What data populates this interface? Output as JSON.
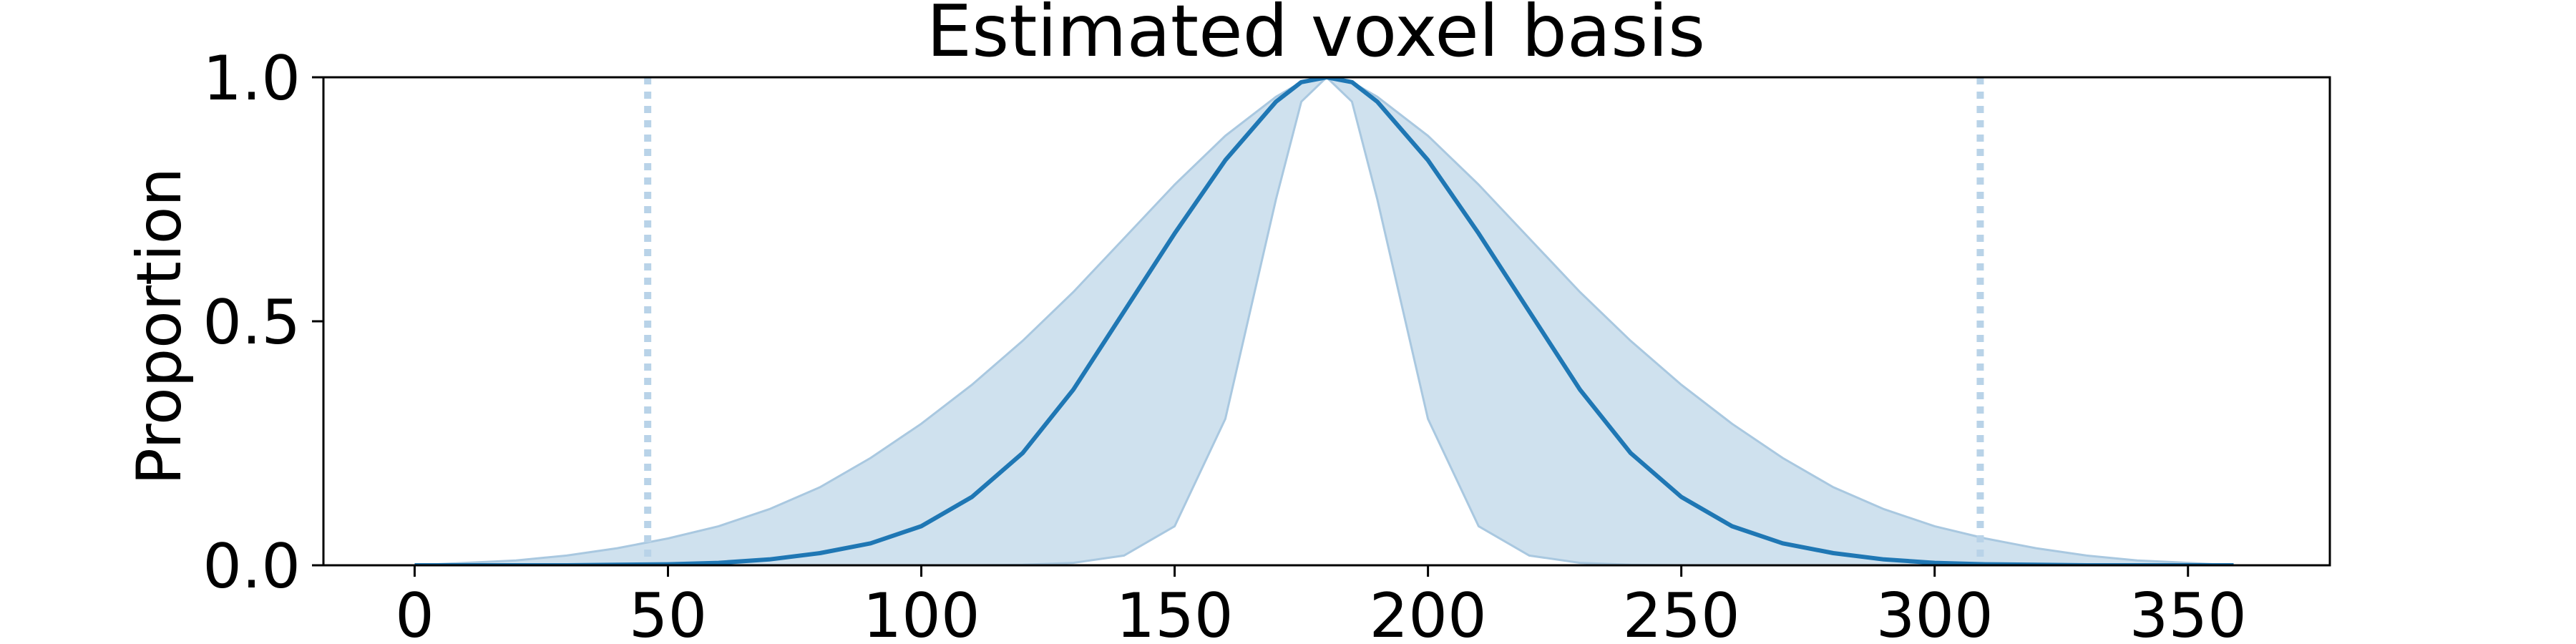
{
  "chart_data": {
    "type": "line",
    "title": "Estimated voxel basis",
    "xlabel": "",
    "ylabel": "Proportion",
    "xlim": [
      -18,
      378
    ],
    "ylim": [
      0.0,
      1.0
    ],
    "xticks": [
      0,
      50,
      100,
      150,
      200,
      250,
      300,
      350
    ],
    "yticks": [
      0.0,
      0.5,
      1.0
    ],
    "xtick_labels": [
      "0",
      "50",
      "100",
      "150",
      "200",
      "250",
      "300",
      "350"
    ],
    "ytick_labels": [
      "0.0",
      "0.5",
      "1.0"
    ],
    "grid": false,
    "legend": "none",
    "colors": {
      "line": "#1f77b4",
      "band": "#cfe1ee",
      "band_edge": "#a9c8e0",
      "vline": "#b9d3e8"
    },
    "x": [
      0,
      10,
      20,
      30,
      40,
      50,
      60,
      70,
      80,
      90,
      100,
      110,
      120,
      130,
      140,
      150,
      160,
      170,
      175,
      180,
      185,
      190,
      200,
      210,
      220,
      230,
      240,
      250,
      260,
      270,
      280,
      290,
      300,
      310,
      320,
      330,
      340,
      350,
      359
    ],
    "series": [
      {
        "values": [
          0.0,
          0.0,
          0.0,
          0.0,
          0.001,
          0.002,
          0.005,
          0.012,
          0.025,
          0.045,
          0.08,
          0.14,
          0.23,
          0.36,
          0.52,
          0.68,
          0.83,
          0.95,
          0.99,
          1.0,
          0.99,
          0.95,
          0.83,
          0.68,
          0.52,
          0.36,
          0.23,
          0.14,
          0.08,
          0.045,
          0.025,
          0.012,
          0.005,
          0.002,
          0.001,
          0.0,
          0.0,
          0.0,
          0.0
        ]
      },
      {
        "type": "band",
        "upper": [
          0.0,
          0.005,
          0.01,
          0.02,
          0.035,
          0.055,
          0.08,
          0.115,
          0.16,
          0.22,
          0.29,
          0.37,
          0.46,
          0.56,
          0.67,
          0.78,
          0.88,
          0.96,
          0.99,
          1.0,
          0.99,
          0.96,
          0.88,
          0.78,
          0.67,
          0.56,
          0.46,
          0.37,
          0.29,
          0.22,
          0.16,
          0.115,
          0.08,
          0.055,
          0.035,
          0.02,
          0.01,
          0.005,
          0.0
        ],
        "lower": [
          0.0,
          0.0,
          0.0,
          0.0,
          0.0,
          0.0,
          0.0,
          0.0,
          0.0,
          0.0,
          0.0,
          0.0,
          0.001,
          0.005,
          0.02,
          0.08,
          0.3,
          0.75,
          0.95,
          1.0,
          0.95,
          0.75,
          0.3,
          0.08,
          0.02,
          0.005,
          0.001,
          0.0,
          0.0,
          0.0,
          0.0,
          0.0,
          0.0,
          0.0,
          0.0,
          0.0,
          0.0,
          0.0,
          0.0
        ]
      }
    ],
    "vlines": [
      46,
      309
    ]
  }
}
